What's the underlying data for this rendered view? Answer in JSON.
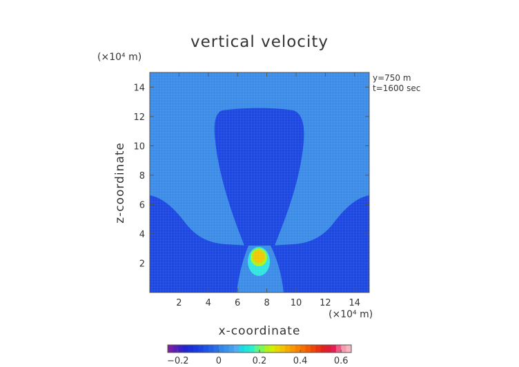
{
  "chart_data": {
    "type": "contour",
    "title": "vertical velocity",
    "xlabel": "x-coordinate",
    "ylabel": "z-coordinate",
    "x_unit": "(×10⁴ m)",
    "y_unit": "(×10⁴ m)",
    "annotations": [
      "y=750 m",
      "t=1600 sec"
    ],
    "xlim": [
      0,
      15
    ],
    "ylim": [
      0,
      15
    ],
    "x_ticks": [
      2,
      4,
      6,
      8,
      10,
      12,
      14
    ],
    "y_ticks": [
      2,
      4,
      6,
      8,
      10,
      12,
      14
    ],
    "colorbar": {
      "range": [
        -0.25,
        0.65
      ],
      "tick_values": [
        -0.2,
        0,
        0.2,
        0.4,
        0.6
      ],
      "tick_labels": [
        "−0.2",
        "0",
        "0.2",
        "0.4",
        "0.6"
      ],
      "levels": [
        -0.25,
        -0.225,
        -0.2,
        -0.175,
        -0.15,
        -0.125,
        -0.1,
        -0.075,
        -0.05,
        -0.025,
        0,
        0.025,
        0.05,
        0.075,
        0.1,
        0.125,
        0.15,
        0.175,
        0.2,
        0.225,
        0.25,
        0.275,
        0.3,
        0.325,
        0.35,
        0.375,
        0.4,
        0.425,
        0.45,
        0.475,
        0.5,
        0.525,
        0.55,
        0.575,
        0.6,
        0.625,
        0.65
      ],
      "colors": [
        "#7a1fa2",
        "#5a20b5",
        "#3a21c7",
        "#2026cf",
        "#1a2fd8",
        "#1838e0",
        "#1a45e2",
        "#1e54e6",
        "#245fe8",
        "#2a6ee8",
        "#3387ea",
        "#3a92ec",
        "#44a0ef",
        "#55adf1",
        "#1ed8e8",
        "#22e6d9",
        "#2af0cc",
        "#5ef58d",
        "#7ef850",
        "#b2f21c",
        "#d0f000",
        "#e8d800",
        "#f2c400",
        "#f7ad00",
        "#fa9600",
        "#fb8200",
        "#f96e00",
        "#f45a00",
        "#ee4608",
        "#e83212",
        "#e2211c",
        "#e01c34",
        "#e41e52",
        "#ec5a84",
        "#f49ab0",
        "#f8b5c2"
      ]
    },
    "contour_fills": [
      {
        "region": "background",
        "value": 0.0,
        "color": "#3a8cea"
      },
      {
        "region": "upper-plume",
        "value": -0.05,
        "color": "#1a47e5"
      },
      {
        "region": "left-lower-lobe",
        "value": -0.05,
        "color": "#1a47e5"
      },
      {
        "region": "right-lower-lobe",
        "value": -0.05,
        "color": "#1a47e5"
      },
      {
        "region": "updraft-ring",
        "value": 0.15,
        "color": "#2ee6e0"
      },
      {
        "region": "updraft-mid",
        "value": 0.25,
        "color": "#a8f21e"
      },
      {
        "region": "updraft-core",
        "value": 0.35,
        "color": "#f0c800"
      }
    ]
  }
}
